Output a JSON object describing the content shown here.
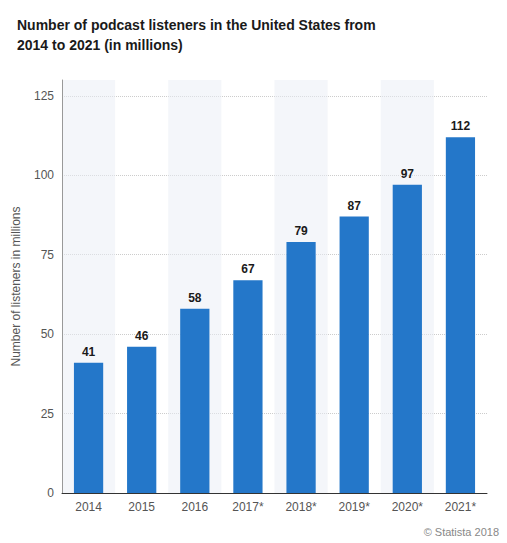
{
  "chart_data": {
    "type": "bar",
    "title": "Number of podcast listeners in the United States from\n2014 to 2021 (in millions)",
    "categories": [
      "2014",
      "2015",
      "2016",
      "2017*",
      "2018*",
      "2019*",
      "2020*",
      "2021*"
    ],
    "values": [
      41,
      46,
      58,
      67,
      79,
      87,
      97,
      112
    ],
    "color": "#2477c9",
    "ylabel": "Number of listeners in millions",
    "ylim": [
      0,
      130
    ],
    "yticks": [
      0,
      25,
      50,
      75,
      100,
      125
    ],
    "grid": true,
    "data_labels": true,
    "annotations": [
      "© Statista 2018"
    ]
  }
}
